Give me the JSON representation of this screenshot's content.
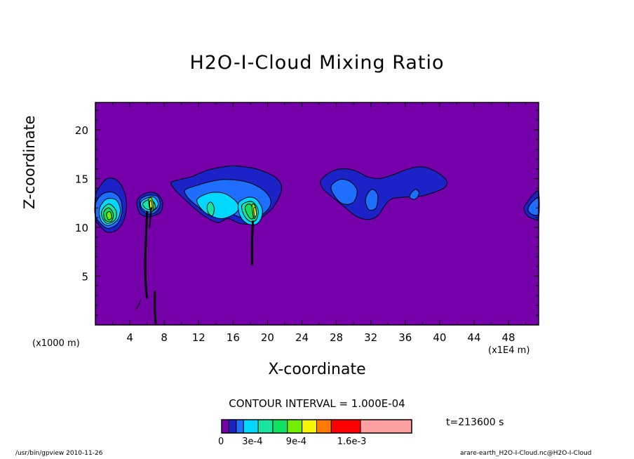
{
  "chart_data": {
    "type": "contour",
    "title": "H2O-I-Cloud Mixing Ratio",
    "xlabel": "X-coordinate",
    "ylabel": "Z-coordinate",
    "x_unit_left": "(x1000 m)",
    "x_unit_right": "(x1E4 m)",
    "xlim": [
      0,
      51.5
    ],
    "ylim": [
      0,
      22.8
    ],
    "x_ticks": [
      4,
      8,
      12,
      16,
      20,
      24,
      28,
      32,
      36,
      40,
      44,
      48
    ],
    "y_ticks": [
      5,
      10,
      15,
      20
    ],
    "contour_interval_text": "CONTOUR INTERVAL = 1.000E-04",
    "time_text": "t=213600 s",
    "colorbar": {
      "colors": [
        "#7500aa",
        "#1a22c8",
        "#1e6eff",
        "#00d8ff",
        "#18e6a0",
        "#10e060",
        "#70f000",
        "#f6f400",
        "#ff7a00",
        "#ff0000",
        "#ffa0a0"
      ],
      "widths": [
        1,
        1,
        1,
        2,
        2,
        2,
        2,
        2,
        2,
        4,
        7
      ],
      "labels": [
        {
          "text": "0",
          "pos": 0
        },
        {
          "text": "3e-4",
          "pos": 3
        },
        {
          "text": "9e-4",
          "pos": 9
        },
        {
          "text": "1.6e-3",
          "pos": 16
        }
      ]
    },
    "fields": [
      {
        "x": [
          0,
          0.6,
          1.4,
          2.4,
          3.2,
          3.6,
          3.4,
          2.6,
          1.4,
          0.5,
          0
        ],
        "y": [
          13.2,
          14.3,
          15.0,
          14.9,
          14.0,
          12.6,
          11.0,
          9.8,
          9.5,
          10.2,
          11.0
        ],
        "level": 1
      },
      {
        "x": [
          0,
          0.8,
          2.0,
          2.9,
          3.1,
          2.6,
          1.5,
          0.6,
          0
        ],
        "y": [
          12.4,
          13.4,
          13.6,
          12.9,
          11.6,
          10.4,
          9.9,
          10.4,
          11.2
        ],
        "level": 2
      },
      {
        "x": [
          0.5,
          1.3,
          2.4,
          2.9,
          2.5,
          1.4,
          0.6
        ],
        "y": [
          12.0,
          12.9,
          12.8,
          11.8,
          10.7,
          10.2,
          10.8
        ],
        "level": 3
      },
      {
        "x": [
          0.8,
          1.6,
          2.4,
          2.3,
          1.4,
          0.8
        ],
        "y": [
          11.8,
          12.4,
          11.7,
          10.8,
          10.4,
          11.0
        ],
        "level": 4
      },
      {
        "x": [
          1.0,
          1.6,
          2.1,
          1.8,
          1.1
        ],
        "y": [
          11.6,
          12.0,
          11.3,
          10.6,
          10.8
        ],
        "level": 5
      },
      {
        "x": [
          1.3,
          1.7,
          1.9,
          1.5
        ],
        "y": [
          11.4,
          11.6,
          11.0,
          10.8
        ],
        "level": 6
      },
      {
        "x": [
          5.0,
          5.6,
          6.4,
          7.2,
          7.8,
          7.6,
          6.8,
          6.0,
          5.2,
          4.8
        ],
        "y": [
          13.0,
          13.4,
          13.6,
          13.4,
          12.6,
          11.6,
          11.2,
          11.1,
          11.4,
          12.4
        ],
        "level": 1
      },
      {
        "x": [
          5.2,
          5.8,
          6.6,
          7.3,
          7.5,
          6.9,
          6.1,
          5.3
        ],
        "y": [
          12.8,
          13.2,
          13.3,
          13.1,
          12.2,
          11.5,
          11.4,
          11.9
        ],
        "level": 2
      },
      {
        "x": [
          5.3,
          6.0,
          6.8,
          7.3,
          6.9,
          6.1,
          5.4
        ],
        "y": [
          12.6,
          13.0,
          13.1,
          12.4,
          11.8,
          11.6,
          12.0
        ],
        "level": 3
      },
      {
        "x": [
          5.5,
          6.1,
          6.8,
          7.0,
          6.6,
          5.9
        ],
        "y": [
          12.4,
          12.8,
          12.6,
          12.0,
          11.8,
          11.9
        ],
        "level": 4
      },
      {
        "x": [
          6.2,
          6.5,
          6.8,
          6.6,
          6.3
        ],
        "y": [
          12.9,
          13.0,
          12.3,
          11.6,
          12.0
        ],
        "level": 6
      },
      {
        "x": [
          6.3,
          6.5,
          6.6,
          6.4
        ],
        "y": [
          12.6,
          12.7,
          12.0,
          11.8
        ],
        "level": 7
      },
      {
        "x": [
          8.8,
          9.8,
          11.2,
          12.8,
          14.2,
          15.8,
          17.4,
          19.0,
          20.8,
          21.6,
          21.4,
          20.6,
          19.6,
          18.2,
          16.8,
          15.4,
          14.2,
          12.6,
          11.2,
          10.0,
          9.2
        ],
        "y": [
          14.6,
          14.9,
          15.2,
          15.8,
          16.1,
          16.3,
          16.2,
          15.9,
          15.2,
          14.3,
          13.2,
          12.0,
          11.2,
          10.4,
          10.4,
          10.9,
          10.5,
          11.2,
          12.2,
          13.2,
          13.9
        ],
        "level": 1
      },
      {
        "x": [
          10.4,
          11.8,
          13.4,
          15.0,
          16.8,
          18.4,
          19.8,
          20.4,
          19.8,
          18.4,
          17.0,
          15.6,
          14.4,
          13.0,
          11.8,
          10.8
        ],
        "y": [
          13.8,
          14.3,
          14.7,
          14.9,
          14.8,
          14.4,
          13.6,
          12.6,
          11.6,
          11.0,
          11.0,
          11.4,
          11.0,
          11.4,
          12.2,
          13.0
        ],
        "level": 2
      },
      {
        "x": [
          11.8,
          12.8,
          14.0,
          15.2,
          16.4,
          16.6,
          15.8,
          14.6,
          13.4,
          12.4
        ],
        "y": [
          12.8,
          13.4,
          13.6,
          13.4,
          12.6,
          11.8,
          11.2,
          10.9,
          11.2,
          11.8
        ],
        "level": 3
      },
      {
        "x": [
          13.0,
          13.4,
          13.8,
          13.6,
          13.1
        ],
        "y": [
          12.2,
          12.6,
          12.0,
          11.2,
          11.5
        ],
        "level": 4
      },
      {
        "x": [
          16.6,
          17.2,
          18.0,
          18.8,
          19.4,
          19.2,
          18.6,
          17.6,
          16.8
        ],
        "y": [
          12.4,
          12.9,
          13.1,
          12.8,
          11.8,
          10.8,
          10.3,
          10.4,
          11.2
        ],
        "level": 3
      },
      {
        "x": [
          17.0,
          17.6,
          18.3,
          18.9,
          18.7,
          18.0,
          17.3
        ],
        "y": [
          12.2,
          12.6,
          12.6,
          11.8,
          10.8,
          10.6,
          11.2
        ],
        "level": 4
      },
      {
        "x": [
          17.4,
          17.9,
          18.4,
          18.3,
          17.8
        ],
        "y": [
          12.0,
          12.4,
          11.8,
          10.9,
          11.1
        ],
        "level": 5
      },
      {
        "x": [
          18.2,
          18.5,
          18.7,
          18.5,
          18.3
        ],
        "y": [
          12.3,
          12.3,
          11.6,
          10.9,
          11.3
        ],
        "level": 6
      },
      {
        "x": [
          18.4,
          18.6,
          18.7,
          18.5
        ],
        "y": [
          11.9,
          12.0,
          11.3,
          11.1
        ],
        "level": 7
      },
      {
        "x": [
          26.2,
          27.2,
          28.6,
          30.2,
          31.6,
          33.0,
          34.6,
          36.4,
          38.0,
          39.6,
          40.8,
          40.6,
          39.4,
          37.8,
          36.0,
          34.2,
          32.8,
          31.6,
          30.2,
          28.8,
          27.4,
          26.4
        ],
        "y": [
          14.8,
          15.6,
          16.0,
          15.8,
          15.2,
          15.0,
          15.4,
          16.0,
          16.2,
          15.7,
          14.8,
          14.1,
          13.6,
          13.2,
          13.1,
          12.8,
          11.2,
          10.8,
          11.2,
          12.2,
          13.2,
          14.0
        ],
        "level": 1
      },
      {
        "x": [
          27.4,
          28.4,
          29.6,
          30.4,
          30.0,
          28.8,
          27.8
        ],
        "y": [
          14.2,
          14.9,
          14.7,
          13.8,
          12.6,
          12.4,
          13.2
        ],
        "level": 2
      },
      {
        "x": [
          31.6,
          32.2,
          32.8,
          32.6,
          31.8,
          31.4
        ],
        "y": [
          13.4,
          13.9,
          13.3,
          12.0,
          11.8,
          12.6
        ],
        "level": 2
      },
      {
        "x": [
          36.6,
          37.2,
          37.6,
          37.2,
          36.6
        ],
        "y": [
          13.4,
          13.9,
          13.5,
          12.9,
          13.0
        ],
        "level": 2
      },
      {
        "x": [
          50.2,
          50.8,
          51.5,
          51.5,
          50.8,
          50.1,
          49.8
        ],
        "y": [
          12.6,
          13.3,
          13.6,
          11.0,
          10.9,
          11.3,
          12.0
        ],
        "level": 1
      },
      {
        "x": [
          50.4,
          51.0,
          51.5,
          51.5,
          50.8,
          50.3
        ],
        "y": [
          12.2,
          12.8,
          13.0,
          11.4,
          11.3,
          11.7
        ],
        "level": 2
      }
    ],
    "stems": [
      {
        "x": [
          6.0,
          5.9,
          5.8,
          5.8,
          5.9,
          6.0
        ],
        "y": [
          11.6,
          9.5,
          7.0,
          5.0,
          3.5,
          2.8
        ],
        "width": 3
      },
      {
        "x": [
          6.5,
          6.4,
          6.3
        ],
        "y": [
          12.0,
          11.0,
          10.0
        ],
        "width": 2
      },
      {
        "x": [
          18.3,
          18.2,
          18.2
        ],
        "y": [
          10.6,
          8.5,
          6.2
        ],
        "width": 3
      },
      {
        "x": [
          6.9,
          6.9,
          7.0
        ],
        "y": [
          3.4,
          1.5,
          0.2
        ],
        "width": 3
      },
      {
        "x": [
          4.7,
          5.0,
          5.3
        ],
        "y": [
          1.6,
          2.0,
          2.6
        ],
        "width": 1
      }
    ]
  },
  "footer": {
    "left": "/usr/bin/gpview  2010-11-26",
    "right": "arare-earth_H2O-I-Cloud.nc@H2O-I-Cloud"
  }
}
